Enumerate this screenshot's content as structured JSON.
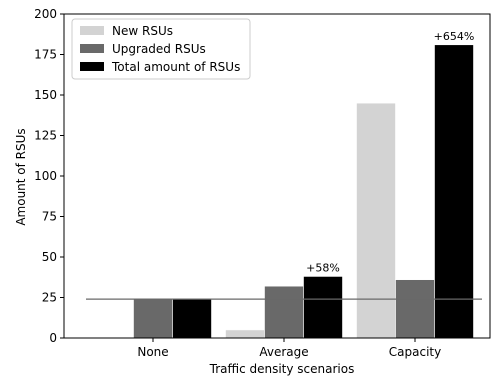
{
  "chart_data": {
    "type": "bar",
    "title": "",
    "xlabel": "Traffic density scenarios",
    "ylabel": "Amount of RSUs",
    "categories": [
      "None",
      "Average",
      "Capacity"
    ],
    "ylim": [
      0,
      200
    ],
    "yticks": [
      0,
      25,
      50,
      75,
      100,
      125,
      150,
      175,
      200
    ],
    "grid": false,
    "legend_position": "top-left",
    "series": [
      {
        "name": "New RSUs",
        "values": [
          0,
          5,
          145
        ],
        "color": "#d3d3d3"
      },
      {
        "name": "Upgraded RSUs",
        "values": [
          24,
          32,
          36
        ],
        "color": "#696969"
      },
      {
        "name": "Total amount of RSUs",
        "values": [
          24,
          38,
          181
        ],
        "color": "#000000"
      }
    ],
    "reference_line": {
      "value": 24,
      "color": "#696969"
    },
    "annotations": [
      {
        "category": "Average",
        "series": "Total amount of RSUs",
        "text": "+58%"
      },
      {
        "category": "Capacity",
        "series": "Total amount of RSUs",
        "text": "+654%"
      }
    ]
  }
}
